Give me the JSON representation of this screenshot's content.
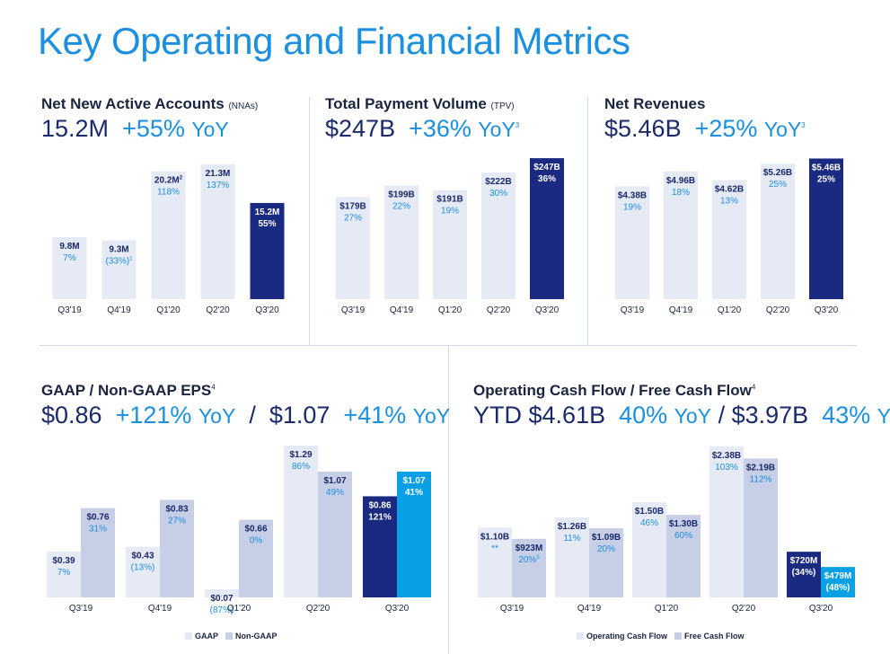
{
  "title": "Key Operating and Financial Metrics",
  "colors": {
    "light_bar": "#e6eaf4",
    "mid_bar": "#c7cfe6",
    "dark_bar": "#1a2a80",
    "cyan_bar": "#0aa0e6",
    "label_dark": "#1a2a6c",
    "label_blue": "#1b8fe0"
  },
  "panels": {
    "nna": {
      "title": "Net New Active Accounts",
      "title_suffix": "(NNAs)",
      "headline_value": "15.2M",
      "headline_change": "+55%",
      "headline_yoy": "YoY"
    },
    "tpv": {
      "title": "Total Payment Volume",
      "title_suffix": "(TPV)",
      "headline_value": "$247B",
      "headline_change": "+36%",
      "headline_yoy": "YoY",
      "headline_note": "3"
    },
    "rev": {
      "title": "Net Revenues",
      "headline_value": "$5.46B",
      "headline_change": "+25%",
      "headline_yoy": "YoY",
      "headline_note": "3"
    },
    "eps": {
      "title": "GAAP / Non-GAAP EPS",
      "title_note": "4",
      "value1": "$0.86",
      "change1": "+121%",
      "yoy1": "YoY",
      "sep": "/",
      "value2": "$1.07",
      "change2": "+41%",
      "yoy2": "YoY"
    },
    "cash": {
      "title": "Operating Cash Flow / Free Cash Flow",
      "title_note": "4",
      "prefix": "YTD",
      "value1": "$4.61B",
      "change1": "40%",
      "yoy1": "YoY",
      "sep": "/",
      "value2": "$3.97B",
      "change2": "43%",
      "yoy2": "YoY"
    }
  },
  "chart_data": [
    {
      "id": "nna",
      "type": "bar",
      "categories": [
        "Q3'19",
        "Q4'19",
        "Q1'20",
        "Q2'20",
        "Q3'20"
      ],
      "values": [
        9.8,
        9.3,
        20.2,
        21.3,
        15.2
      ],
      "value_labels": [
        "9.8M",
        "9.3M",
        "20.2M",
        "21.3M",
        "15.2M"
      ],
      "value_notes": [
        "",
        "",
        "2",
        "",
        ""
      ],
      "change_labels": [
        "7%",
        "(33%)",
        "118%",
        "137%",
        "55%"
      ],
      "change_notes": [
        "",
        "1",
        "",
        "",
        ""
      ],
      "highlight_last": true,
      "ylim": [
        0,
        23
      ]
    },
    {
      "id": "tpv",
      "type": "bar",
      "categories": [
        "Q3'19",
        "Q4'19",
        "Q1'20",
        "Q2'20",
        "Q3'20"
      ],
      "values": [
        179,
        199,
        191,
        222,
        247
      ],
      "value_labels": [
        "$179B",
        "$199B",
        "$191B",
        "$222B",
        "$247B"
      ],
      "change_labels": [
        "27%",
        "22%",
        "19%",
        "30%",
        "36%"
      ],
      "highlight_last": true,
      "ylim": [
        0,
        255
      ]
    },
    {
      "id": "rev",
      "type": "bar",
      "categories": [
        "Q3'19",
        "Q4'19",
        "Q1'20",
        "Q2'20",
        "Q3'20"
      ],
      "values": [
        4.38,
        4.96,
        4.62,
        5.26,
        5.46
      ],
      "value_labels": [
        "$4.38B",
        "$4.96B",
        "$4.62B",
        "$5.26B",
        "$5.46B"
      ],
      "change_labels": [
        "19%",
        "18%",
        "13%",
        "25%",
        "25%"
      ],
      "highlight_last": true,
      "ylim": [
        0,
        5.65
      ]
    },
    {
      "id": "eps",
      "type": "bar",
      "categories": [
        "Q3'19",
        "Q4'19",
        "Q1'20",
        "Q2'20",
        "Q3'20"
      ],
      "series": [
        {
          "name": "GAAP",
          "values": [
            0.39,
            0.43,
            0.07,
            1.29,
            0.86
          ],
          "value_labels": [
            "$0.39",
            "$0.43",
            "$0.07",
            "$1.29",
            "$0.86"
          ],
          "change_labels": [
            "7%",
            "(13%)",
            "(87%)",
            "86%",
            "121%"
          ],
          "change_notes": [
            "",
            "",
            "",
            "",
            ""
          ]
        },
        {
          "name": "Non-GAAP",
          "values": [
            0.76,
            0.83,
            0.66,
            1.07,
            1.07
          ],
          "value_labels": [
            "$0.76",
            "$0.83",
            "$0.66",
            "$1.07",
            "$1.07"
          ],
          "change_labels": [
            "31%",
            "27%",
            "0%",
            "49%",
            "41%"
          ],
          "change_notes": [
            "",
            "",
            "",
            "",
            ""
          ]
        }
      ],
      "highlight_last": true,
      "ylim": [
        0,
        1.36
      ],
      "legend": "bottom-center"
    },
    {
      "id": "cash",
      "type": "bar",
      "categories": [
        "Q3'19",
        "Q4'19",
        "Q1'20",
        "Q2'20",
        "Q3'20"
      ],
      "series": [
        {
          "name": "Operating Cash Flow",
          "values": [
            1.1,
            1.26,
            1.5,
            2.38,
            0.72
          ],
          "value_labels": [
            "$1.10B",
            "$1.26B",
            "$1.50B",
            "$2.38B",
            "$720M"
          ],
          "change_labels": [
            "**",
            "11%",
            "46%",
            "103%",
            "(34%)"
          ],
          "change_notes": [
            "",
            "",
            "",
            "",
            ""
          ]
        },
        {
          "name": "Free Cash Flow",
          "values": [
            0.923,
            1.09,
            1.3,
            2.19,
            0.479
          ],
          "value_labels": [
            "$923M",
            "$1.09B",
            "$1.30B",
            "$2.19B",
            "$479M"
          ],
          "change_labels": [
            "20%",
            "20%",
            "60%",
            "112%",
            "(48%)"
          ],
          "change_notes": [
            "5",
            "",
            "",
            "",
            ""
          ]
        }
      ],
      "highlight_last": true,
      "ylim": [
        0,
        2.52
      ],
      "legend": "bottom-center"
    }
  ]
}
